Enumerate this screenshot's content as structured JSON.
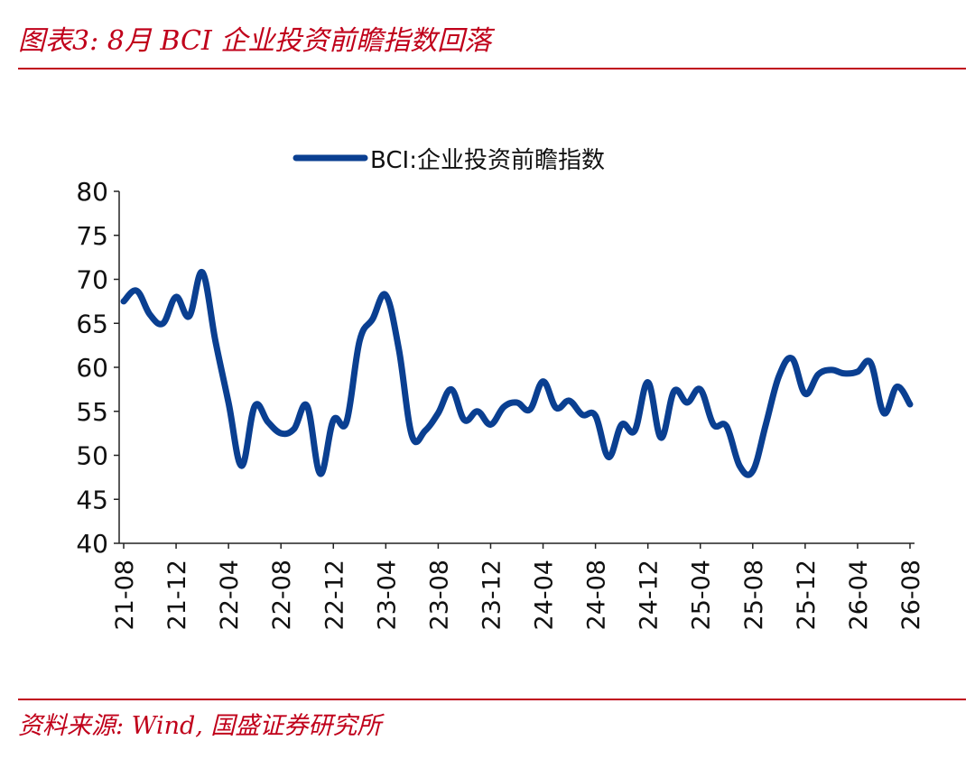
{
  "title": "图表3:  8月 BCI 企业投资前瞻指数回落",
  "source": "资料来源:  Wind,  国盛证券研究所",
  "colors": {
    "accent": "#c0001a",
    "line": "#0a3f91",
    "axis": "#222222",
    "text": "#111111"
  },
  "chart_data": {
    "type": "line",
    "title": "",
    "xlabel": "",
    "ylabel": "",
    "ylim": [
      40,
      80
    ],
    "yticks": [
      40,
      45,
      50,
      55,
      60,
      65,
      70,
      75,
      80
    ],
    "legend": "top-center",
    "grid": false,
    "x_tick_labels": [
      "21-08",
      "21-12",
      "22-04",
      "22-08",
      "22-12",
      "23-04",
      "23-08",
      "23-12",
      "24-04",
      "24-08",
      "24-12",
      "25-04",
      "25-08",
      "25-12",
      "26-04",
      "26-08"
    ],
    "x": [
      "21-08",
      "21-09",
      "21-10",
      "21-11",
      "21-12",
      "22-01",
      "22-02",
      "22-03",
      "22-04",
      "22-05",
      "22-06",
      "22-07",
      "22-08",
      "22-09",
      "22-10",
      "22-11",
      "22-12",
      "23-01",
      "23-02",
      "23-03",
      "23-04",
      "23-05",
      "23-06",
      "23-07",
      "23-08",
      "23-09",
      "23-10",
      "23-11",
      "23-12",
      "24-01",
      "24-02",
      "24-03",
      "24-04",
      "24-05",
      "24-06",
      "24-07",
      "24-08",
      "24-09",
      "24-10",
      "24-11",
      "24-12",
      "25-01",
      "25-02",
      "25-03",
      "25-04",
      "25-05",
      "25-06",
      "25-07",
      "25-08",
      "25-09",
      "25-10",
      "25-11",
      "25-12",
      "26-01",
      "26-02",
      "26-03",
      "26-04",
      "26-05",
      "26-06",
      "26-07",
      "26-08"
    ],
    "series": [
      {
        "name": "BCI:企业投资前瞻指数",
        "values": [
          67.5,
          68.7,
          66.0,
          65.0,
          68.0,
          65.8,
          70.8,
          63.0,
          56.0,
          48.8,
          55.6,
          53.8,
          52.5,
          53.0,
          55.6,
          47.9,
          54.0,
          53.8,
          63.0,
          65.5,
          68.2,
          62.0,
          52.2,
          52.8,
          54.8,
          57.5,
          54.0,
          55.0,
          53.5,
          55.5,
          56.0,
          55.2,
          58.4,
          55.4,
          56.2,
          54.6,
          54.5,
          49.8,
          53.5,
          52.8,
          58.3,
          52.0,
          57.3,
          56.0,
          57.5,
          53.5,
          53.3,
          48.8,
          48.2,
          53.5,
          59.0,
          61.0,
          57.0,
          59.2,
          59.7,
          59.3,
          59.5,
          60.5,
          54.8,
          57.8,
          55.8
        ]
      }
    ]
  }
}
